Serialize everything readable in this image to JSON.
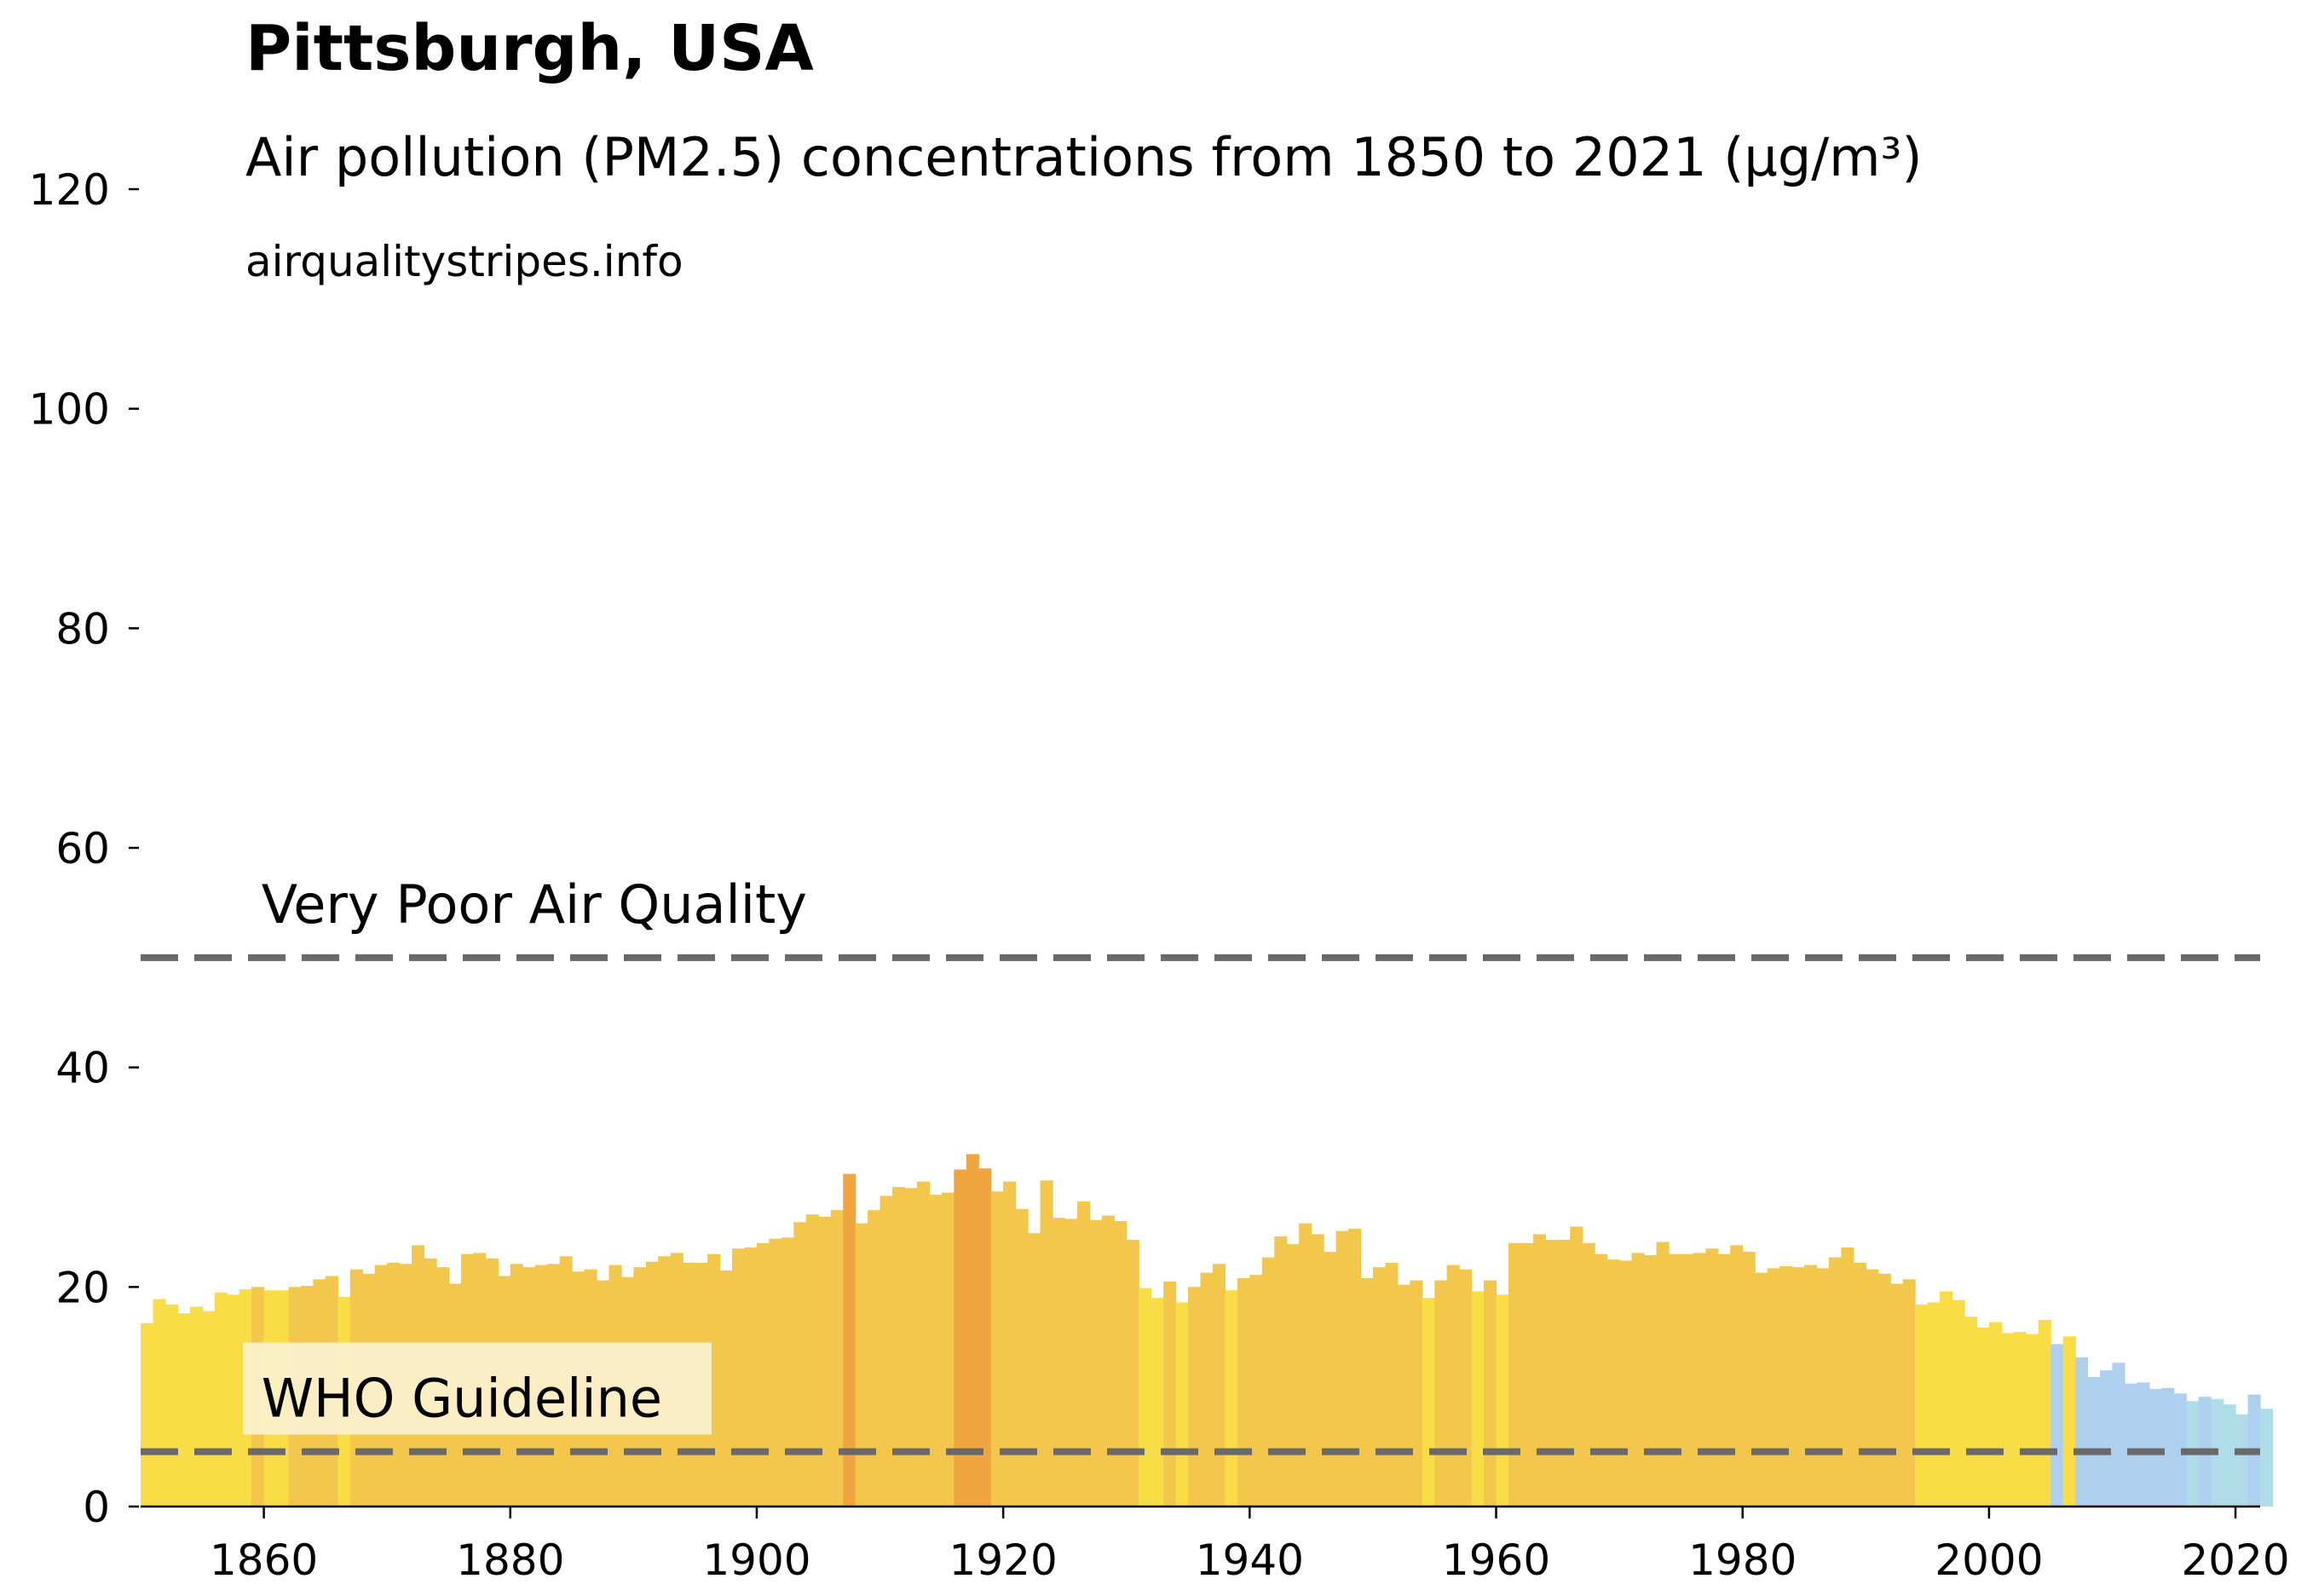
{
  "title": "Pittsburgh, USA",
  "subtitle": "Air pollution (PM2.5) concentrations from 1850 to 2021 (µg/m³)",
  "source": "airqualitystripes.info",
  "chart_data": {
    "type": "bar",
    "x_start": 1850,
    "x_end": 2021,
    "xlim": [
      1850,
      2022
    ],
    "ylim": [
      0,
      120
    ],
    "x_ticks": [
      1860,
      1880,
      1900,
      1920,
      1940,
      1960,
      1980,
      2000,
      2020
    ],
    "y_ticks": [
      0,
      20,
      40,
      60,
      80,
      100,
      120
    ],
    "grid": false,
    "values": [
      16.7,
      18.9,
      18.4,
      17.6,
      18.2,
      17.8,
      19.5,
      19.3,
      19.8,
      20.0,
      19.7,
      19.7,
      20.0,
      20.1,
      20.7,
      21.0,
      19.1,
      21.6,
      21.2,
      22.0,
      22.2,
      22.1,
      23.8,
      22.6,
      21.8,
      20.3,
      23.0,
      23.1,
      22.6,
      21.0,
      22.1,
      21.8,
      22.0,
      22.1,
      22.8,
      21.4,
      21.6,
      20.6,
      22.0,
      20.9,
      21.8,
      22.3,
      22.8,
      23.1,
      22.2,
      22.2,
      23.0,
      21.5,
      23.5,
      23.6,
      24.0,
      24.4,
      24.5,
      25.9,
      26.6,
      26.4,
      27.0,
      30.3,
      25.8,
      27.0,
      28.3,
      29.1,
      29.0,
      29.6,
      28.4,
      28.6,
      30.7,
      32.1,
      30.8,
      28.7,
      29.6,
      27.1,
      24.9,
      29.7,
      26.3,
      26.2,
      27.8,
      26.1,
      26.5,
      26.0,
      24.3,
      19.9,
      19.0,
      20.5,
      18.6,
      20.0,
      21.3,
      22.1,
      19.7,
      20.8,
      21.1,
      22.7,
      24.6,
      23.9,
      25.8,
      24.8,
      23.2,
      25.1,
      25.3,
      20.8,
      21.8,
      22.2,
      20.2,
      20.6,
      19.0,
      20.6,
      22.0,
      21.6,
      19.6,
      20.6,
      19.3,
      24.0,
      24.0,
      24.8,
      24.3,
      24.3,
      25.5,
      24.0,
      23.0,
      22.5,
      22.4,
      23.1,
      22.9,
      24.1,
      23.0,
      23.0,
      23.1,
      23.5,
      23.0,
      23.8,
      23.2,
      21.3,
      21.7,
      21.9,
      21.8,
      22.0,
      21.7,
      22.7,
      23.6,
      22.2,
      21.6,
      21.2,
      20.3,
      20.7,
      18.4,
      18.6,
      19.6,
      18.8,
      17.3,
      16.3,
      16.8,
      15.8,
      15.9,
      15.7,
      17.0,
      14.8,
      15.5,
      13.6,
      11.8,
      12.4,
      13.1,
      11.2,
      11.3,
      10.7,
      10.8,
      10.3,
      9.6,
      10.0,
      9.8,
      9.3,
      8.4,
      10.2,
      8.9
    ],
    "reference_lines": [
      {
        "label": "Very Poor Air Quality",
        "value": 50
      },
      {
        "label": "WHO Guideline",
        "value": 5
      }
    ],
    "colors": {
      "light_blue": "#aedce8",
      "blue": "#aecfee",
      "yellow": "#f8dd47",
      "gold": "#f2c74b",
      "orange": "#f0a640",
      "ref_line": "#696969",
      "label_bg": "#fdf3d9"
    }
  }
}
